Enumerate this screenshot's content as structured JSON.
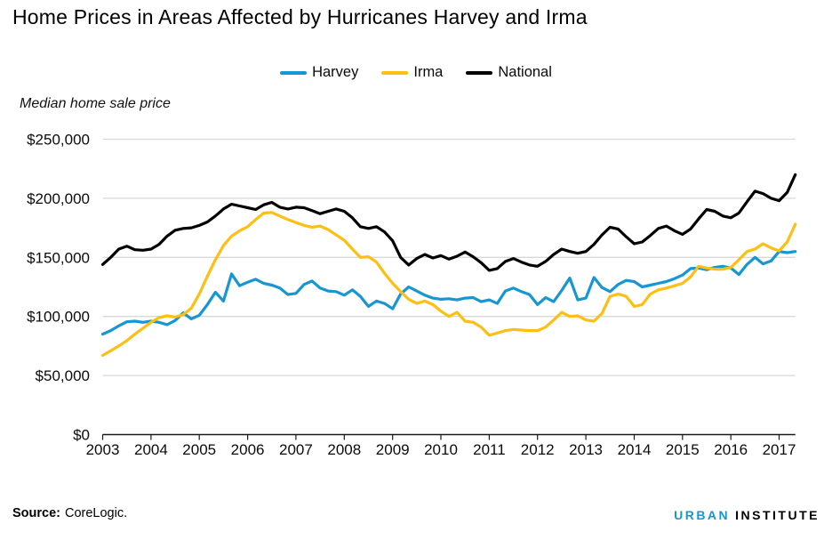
{
  "title": "Home Prices in Areas Affected by Hurricanes Harvey and Irma",
  "y_axis_title": "Median home sale price",
  "legend": [
    {
      "label": "Harvey",
      "color": "#1696d2"
    },
    {
      "label": "Irma",
      "color": "#fdbf11"
    },
    {
      "label": "National",
      "color": "#000000"
    }
  ],
  "footer": {
    "source_label": "Source:",
    "source_text": "CoreLogic.",
    "logo": {
      "urban": "URBAN",
      "institute": "INSTITUTE"
    }
  },
  "chart_data": {
    "type": "line",
    "title": "Home Prices in Areas Affected by Hurricanes Harvey and Irma",
    "xlabel": "",
    "ylabel": "Median home sale price",
    "values_unit": "USD_thousands",
    "x_unit": "decimal_year_monthly_bimonthly",
    "x_start": 2003,
    "x_step_years": 0.1666667,
    "xlim": [
      2003,
      2017.4
    ],
    "ylim": [
      0,
      250
    ],
    "grid": "horizontal",
    "legend_position": "top-center",
    "style": {
      "grid_color": "#d9d9d9",
      "axis_color": "#1a1a1a",
      "text_color": "#0b0b0b",
      "line_width": 3.2
    },
    "y_axis": {
      "ticks": [
        {
          "value": 0,
          "label": "$0"
        },
        {
          "value": 50,
          "label": "$50,000"
        },
        {
          "value": 100,
          "label": "$100,000"
        },
        {
          "value": 150,
          "label": "$150,000"
        },
        {
          "value": 200,
          "label": "$200,000"
        },
        {
          "value": 250,
          "label": "$250,000"
        }
      ]
    },
    "x_axis": {
      "ticks": [
        {
          "value": 2003,
          "label": "2003"
        },
        {
          "value": 2004,
          "label": "2004"
        },
        {
          "value": 2005,
          "label": "2005"
        },
        {
          "value": 2006,
          "label": "2006"
        },
        {
          "value": 2007,
          "label": "2007"
        },
        {
          "value": 2008,
          "label": "2008"
        },
        {
          "value": 2009,
          "label": "2009"
        },
        {
          "value": 2010,
          "label": "2010"
        },
        {
          "value": 2011,
          "label": "2011"
        },
        {
          "value": 2012,
          "label": "2012"
        },
        {
          "value": 2013,
          "label": "2013"
        },
        {
          "value": 2014,
          "label": "2014"
        },
        {
          "value": 2015,
          "label": "2015"
        },
        {
          "value": 2016,
          "label": "2016"
        },
        {
          "value": 2017,
          "label": "2017"
        }
      ]
    },
    "series": [
      {
        "name": "Harvey",
        "color": "#1696d2",
        "values": [
          85,
          88,
          92,
          95.5,
          96,
          95,
          96,
          95,
          93,
          96.5,
          103,
          98,
          101,
          110,
          120.5,
          113,
          136,
          126,
          129,
          131.5,
          128,
          126.5,
          124,
          118.5,
          119.5,
          127,
          130,
          124,
          121.5,
          121,
          118,
          122.5,
          117,
          108.5,
          113,
          111,
          106.5,
          119,
          125,
          121.5,
          118,
          115.5,
          114.5,
          115,
          114,
          115.5,
          116,
          112.5,
          114,
          111,
          121.5,
          124,
          121,
          118.5,
          110,
          116,
          112.5,
          122,
          132.5,
          114,
          115.5,
          133,
          124.5,
          121,
          127,
          130.5,
          129.5,
          125,
          126.5,
          128,
          129.5,
          132,
          135,
          140.5,
          141,
          139.5,
          141.5,
          142.5,
          141,
          135.5,
          144,
          150,
          144.5,
          147,
          155,
          154,
          155
        ]
      },
      {
        "name": "Irma",
        "color": "#fdbf11",
        "values": [
          67,
          71,
          75,
          79.5,
          85,
          90,
          95,
          99,
          100.5,
          99.5,
          101.5,
          107,
          119,
          134,
          148,
          160,
          168,
          172.5,
          176,
          182,
          187.5,
          188,
          185,
          182,
          179.5,
          177,
          175.5,
          176.5,
          173.5,
          169,
          164.5,
          157,
          150,
          150.5,
          146,
          136.5,
          128,
          121,
          114.5,
          111,
          113,
          110,
          104.5,
          100,
          103.5,
          96,
          95,
          91,
          84,
          86,
          88,
          89,
          88.5,
          88,
          88,
          91,
          97,
          103.5,
          100,
          100.5,
          97,
          96,
          102.5,
          117,
          119,
          117,
          108.5,
          110,
          119,
          122.5,
          124,
          126,
          128,
          133.5,
          142.5,
          141,
          140,
          140,
          141.5,
          148,
          155,
          157,
          161.5,
          158,
          155.5,
          163,
          178
        ]
      },
      {
        "name": "National",
        "color": "#000000",
        "values": [
          144,
          150,
          157,
          159.5,
          156.5,
          156,
          157,
          161,
          168,
          173,
          174.5,
          175,
          177,
          180,
          185,
          191,
          195,
          193.5,
          192,
          190.5,
          194.5,
          196.5,
          192.5,
          191,
          192.5,
          192,
          189.5,
          187,
          189,
          191,
          189,
          183.5,
          176,
          174.5,
          176,
          171.5,
          164,
          150,
          143.5,
          149,
          152.5,
          149.5,
          151.5,
          148.5,
          151,
          154.5,
          150.5,
          145.5,
          139,
          140.5,
          146.5,
          149,
          146,
          143.5,
          142.5,
          146.5,
          152.5,
          157,
          155,
          153.5,
          155,
          161,
          169,
          175.5,
          174,
          167.5,
          161.5,
          163,
          168.5,
          174.5,
          176.5,
          172.5,
          169.5,
          174,
          182.5,
          190.5,
          189,
          185,
          183.5,
          187.5,
          197,
          206,
          204,
          200,
          198,
          205,
          220
        ]
      }
    ]
  }
}
